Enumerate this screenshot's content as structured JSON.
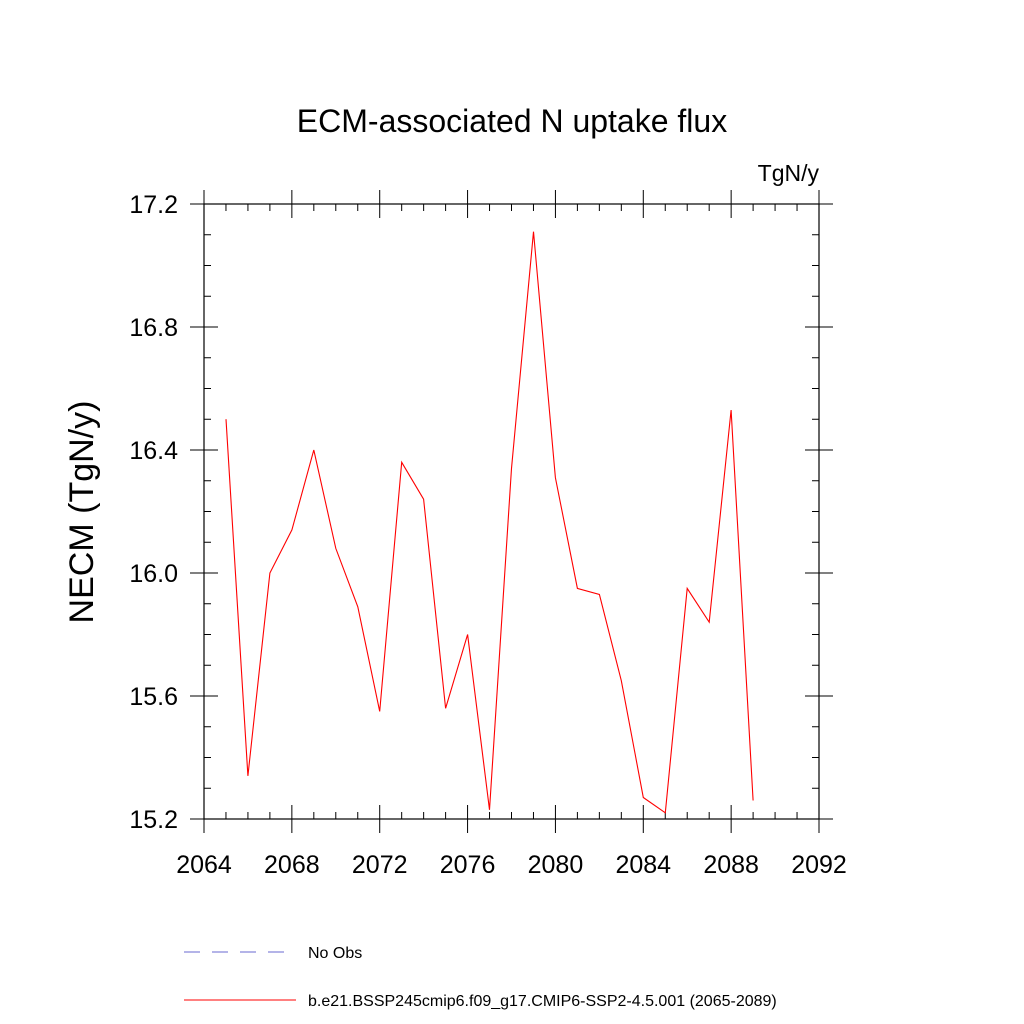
{
  "chart_data": {
    "type": "line",
    "title": "ECM-associated N uptake flux",
    "units_label": "TgN/y",
    "xlabel": "",
    "ylabel": "NECM  (TgN/y)",
    "xlim": [
      2064,
      2092
    ],
    "ylim": [
      15.2,
      17.2
    ],
    "x_ticks": [
      2064,
      2068,
      2072,
      2076,
      2080,
      2084,
      2088,
      2092
    ],
    "y_ticks": [
      15.2,
      15.6,
      16.0,
      16.4,
      16.8,
      17.2
    ],
    "x_tick_labels": [
      "2064",
      "2068",
      "2072",
      "2076",
      "2080",
      "2084",
      "2088",
      "2092"
    ],
    "y_tick_labels": [
      "15.2",
      "15.6",
      "16.0",
      "16.4",
      "16.8",
      "17.2"
    ],
    "grid": false,
    "legend_position": "bottom",
    "series": [
      {
        "name": "No Obs",
        "color": "#6a6ad0",
        "style": "dashed",
        "x": [],
        "values": []
      },
      {
        "name": "b.e21.BSSP245cmip6.f09_g17.CMIP6-SSP2-4.5.001 (2065-2089)",
        "color": "#ff0000",
        "style": "solid",
        "x": [
          2065,
          2066,
          2067,
          2068,
          2069,
          2070,
          2071,
          2072,
          2073,
          2074,
          2075,
          2076,
          2077,
          2078,
          2079,
          2080,
          2081,
          2082,
          2083,
          2084,
          2085,
          2086,
          2087,
          2088,
          2089
        ],
        "values": [
          16.5,
          15.34,
          16.0,
          16.14,
          16.4,
          16.08,
          15.89,
          15.55,
          16.36,
          16.24,
          15.56,
          15.8,
          15.23,
          16.34,
          17.11,
          16.31,
          15.95,
          15.93,
          15.65,
          15.27,
          15.22,
          15.95,
          15.84,
          16.53,
          15.26
        ]
      }
    ]
  }
}
